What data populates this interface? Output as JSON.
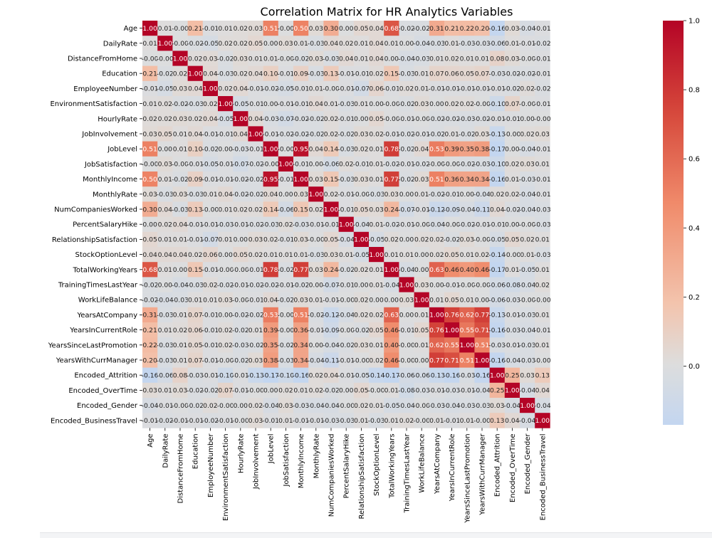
{
  "chart_data": {
    "type": "heatmap",
    "title": "Correlation Matrix for HR Analytics Variables",
    "labels": [
      "Age",
      "DailyRate",
      "DistanceFromHome",
      "Education",
      "EmployeeNumber",
      "EnvironmentSatisfaction",
      "HourlyRate",
      "JobInvolvement",
      "JobLevel",
      "JobSatisfaction",
      "MonthlyIncome",
      "MonthlyRate",
      "NumCompaniesWorked",
      "PercentSalaryHike",
      "RelationshipSatisfaction",
      "StockOptionLevel",
      "TotalWorkingYears",
      "TrainingTimesLastYear",
      "WorkLifeBalance",
      "YearsAtCompany",
      "YearsInCurrentRole",
      "YearsSinceLastPromotion",
      "YearsWithCurrManager",
      "Encoded_Attrition",
      "Encoded_OverTime",
      "Encoded_Gender",
      "Encoded_BusinessTravel"
    ],
    "matrix": [
      [
        1.0,
        0.01,
        -0.0,
        0.21,
        -0.01,
        0.01,
        0.02,
        0.03,
        0.51,
        -0.0,
        0.5,
        0.03,
        0.3,
        0.0,
        0.05,
        0.04,
        0.68,
        -0.02,
        -0.02,
        0.31,
        0.21,
        0.22,
        0.2,
        -0.16,
        0.03,
        -0.04,
        -0.01
      ],
      [
        0.01,
        1.0,
        -0.0,
        -0.02,
        -0.05,
        0.02,
        0.02,
        0.05,
        0.0,
        0.03,
        0.01,
        -0.03,
        0.04,
        0.02,
        0.01,
        0.04,
        0.01,
        0.0,
        -0.04,
        -0.03,
        0.01,
        -0.03,
        -0.03,
        -0.06,
        0.01,
        -0.01,
        -0.02
      ],
      [
        -0.0,
        -0.0,
        1.0,
        0.02,
        0.03,
        -0.02,
        0.03,
        0.01,
        0.01,
        -0.0,
        -0.02,
        0.03,
        -0.03,
        0.04,
        0.01,
        0.04,
        0.0,
        -0.04,
        -0.03,
        0.01,
        0.02,
        0.01,
        0.01,
        0.08,
        0.03,
        -0.0,
        -0.01
      ],
      [
        0.21,
        -0.02,
        0.02,
        1.0,
        0.04,
        -0.03,
        0.02,
        0.04,
        0.1,
        -0.01,
        0.09,
        -0.03,
        0.13,
        -0.01,
        -0.01,
        0.02,
        0.15,
        -0.03,
        0.01,
        0.07,
        0.06,
        0.05,
        0.07,
        -0.03,
        -0.02,
        -0.02,
        -0.01
      ],
      [
        -0.01,
        -0.05,
        0.03,
        0.04,
        1.0,
        0.02,
        0.04,
        -0.01,
        -0.02,
        -0.05,
        -0.01,
        0.01,
        -0.0,
        -0.01,
        -0.07,
        0.06,
        -0.01,
        0.02,
        0.01,
        -0.01,
        -0.01,
        -0.01,
        -0.01,
        -0.01,
        -0.02,
        0.02,
        -0.02
      ],
      [
        0.01,
        0.02,
        -0.02,
        -0.03,
        0.02,
        1.0,
        -0.05,
        -0.01,
        0.0,
        -0.01,
        -0.01,
        0.04,
        0.01,
        -0.03,
        0.01,
        0.0,
        -0.0,
        -0.02,
        0.03,
        0.0,
        0.02,
        0.02,
        -0.0,
        -0.1,
        0.07,
        -0.0,
        -0.01
      ],
      [
        0.02,
        0.02,
        0.03,
        0.02,
        0.04,
        -0.05,
        1.0,
        0.04,
        -0.03,
        -0.07,
        -0.02,
        -0.02,
        0.02,
        -0.01,
        0.0,
        0.05,
        -0.0,
        -0.01,
        -0.0,
        -0.02,
        -0.02,
        -0.03,
        -0.02,
        -0.01,
        -0.01,
        0.0,
        -0.0
      ],
      [
        0.03,
        0.05,
        0.01,
        0.04,
        -0.01,
        -0.01,
        0.04,
        1.0,
        -0.01,
        -0.02,
        -0.02,
        -0.02,
        0.02,
        -0.02,
        0.03,
        0.02,
        -0.01,
        -0.02,
        -0.01,
        -0.02,
        0.01,
        -0.02,
        0.03,
        -0.13,
        -0.0,
        0.02,
        0.03
      ],
      [
        0.51,
        0.0,
        0.01,
        0.1,
        -0.02,
        0.0,
        -0.03,
        -0.01,
        1.0,
        -0.0,
        0.95,
        0.04,
        0.14,
        -0.03,
        0.02,
        0.01,
        0.78,
        -0.02,
        0.04,
        0.53,
        0.39,
        0.35,
        0.38,
        -0.17,
        0.0,
        -0.04,
        -0.01
      ],
      [
        -0.0,
        0.03,
        -0.0,
        -0.01,
        -0.05,
        -0.01,
        -0.07,
        -0.02,
        -0.0,
        1.0,
        -0.01,
        0.0,
        -0.06,
        0.02,
        -0.01,
        0.01,
        -0.02,
        -0.01,
        -0.02,
        -0.0,
        -0.0,
        -0.02,
        -0.03,
        -0.1,
        0.02,
        0.03,
        0.01
      ],
      [
        0.5,
        0.01,
        -0.02,
        0.09,
        -0.01,
        -0.01,
        -0.02,
        -0.02,
        0.95,
        -0.01,
        1.0,
        0.03,
        0.15,
        -0.03,
        0.03,
        0.01,
        0.77,
        -0.02,
        0.03,
        0.51,
        0.36,
        0.34,
        0.34,
        -0.16,
        0.01,
        -0.03,
        -0.01
      ],
      [
        0.03,
        -0.03,
        0.03,
        -0.03,
        0.01,
        0.04,
        -0.02,
        -0.02,
        0.04,
        0.0,
        0.03,
        1.0,
        0.02,
        -0.01,
        -0.0,
        -0.03,
        0.03,
        0.0,
        0.01,
        -0.02,
        -0.01,
        0.0,
        -0.04,
        0.02,
        0.02,
        -0.04,
        -0.01
      ],
      [
        0.3,
        0.04,
        -0.03,
        0.13,
        -0.0,
        0.01,
        0.02,
        0.02,
        0.14,
        -0.06,
        0.15,
        0.02,
        1.0,
        -0.01,
        0.05,
        0.03,
        0.24,
        -0.07,
        -0.01,
        -0.12,
        -0.09,
        -0.04,
        -0.11,
        0.04,
        -0.02,
        -0.04,
        -0.03
      ],
      [
        0.0,
        0.02,
        0.04,
        -0.01,
        -0.01,
        -0.03,
        -0.01,
        -0.02,
        -0.03,
        0.02,
        -0.03,
        -0.01,
        -0.01,
        1.0,
        -0.04,
        0.01,
        -0.02,
        -0.01,
        -0.0,
        -0.04,
        -0.0,
        -0.02,
        -0.01,
        -0.01,
        0.0,
        -0.0,
        -0.03
      ],
      [
        0.05,
        0.01,
        0.01,
        -0.01,
        -0.07,
        0.01,
        0.0,
        0.03,
        0.02,
        -0.01,
        0.03,
        -0.0,
        0.05,
        -0.04,
        1.0,
        -0.05,
        0.02,
        0.0,
        0.02,
        0.02,
        -0.02,
        0.03,
        -0.0,
        -0.05,
        0.05,
        0.02,
        0.01
      ],
      [
        0.04,
        0.04,
        0.04,
        0.02,
        0.06,
        0.0,
        0.05,
        0.02,
        0.01,
        0.01,
        0.01,
        -0.03,
        0.03,
        0.01,
        -0.05,
        1.0,
        0.01,
        0.01,
        0.0,
        0.02,
        0.05,
        0.01,
        0.02,
        -0.14,
        -0.0,
        0.01,
        -0.03
      ],
      [
        0.68,
        0.01,
        0.0,
        0.15,
        -0.01,
        -0.0,
        -0.0,
        -0.01,
        0.78,
        -0.02,
        0.77,
        0.03,
        0.24,
        -0.02,
        0.02,
        0.01,
        1.0,
        -0.04,
        0.0,
        0.63,
        0.46,
        0.4,
        0.46,
        -0.17,
        0.01,
        -0.05,
        0.01
      ],
      [
        -0.02,
        0.0,
        -0.04,
        -0.03,
        0.02,
        -0.02,
        -0.01,
        -0.02,
        -0.02,
        -0.01,
        -0.02,
        0.0,
        -0.07,
        -0.01,
        0.0,
        0.01,
        -0.04,
        1.0,
        0.03,
        0.0,
        -0.01,
        -0.0,
        -0.0,
        -0.06,
        -0.08,
        -0.04,
        0.02
      ],
      [
        -0.02,
        -0.04,
        -0.03,
        0.01,
        0.01,
        0.03,
        -0.0,
        -0.01,
        0.04,
        -0.02,
        0.03,
        0.01,
        -0.01,
        -0.0,
        0.02,
        0.0,
        0.0,
        0.03,
        1.0,
        0.01,
        0.05,
        0.01,
        0.0,
        -0.06,
        -0.03,
        -0.0,
        -0.0
      ],
      [
        0.31,
        -0.03,
        0.01,
        0.07,
        -0.01,
        0.0,
        -0.02,
        -0.02,
        0.53,
        -0.0,
        0.51,
        -0.02,
        -0.12,
        -0.04,
        0.02,
        0.02,
        0.63,
        0.0,
        0.01,
        1.0,
        0.76,
        0.62,
        0.77,
        -0.13,
        -0.01,
        -0.03,
        0.01
      ],
      [
        0.21,
        0.01,
        0.02,
        0.06,
        -0.01,
        0.02,
        -0.02,
        0.01,
        0.39,
        -0.0,
        0.36,
        -0.01,
        -0.09,
        -0.0,
        -0.02,
        0.05,
        0.46,
        -0.01,
        0.05,
        0.76,
        1.0,
        0.55,
        0.71,
        -0.16,
        -0.03,
        -0.04,
        -0.01
      ],
      [
        0.22,
        -0.03,
        0.01,
        0.05,
        -0.01,
        0.02,
        -0.03,
        -0.02,
        0.35,
        -0.02,
        0.34,
        0.0,
        -0.04,
        -0.02,
        0.03,
        0.01,
        0.4,
        -0.0,
        0.01,
        0.62,
        0.55,
        1.0,
        0.51,
        -0.03,
        -0.01,
        -0.03,
        0.01
      ],
      [
        0.2,
        -0.03,
        0.01,
        0.07,
        -0.01,
        -0.0,
        -0.02,
        0.03,
        0.38,
        -0.03,
        0.34,
        -0.04,
        -0.11,
        -0.01,
        -0.0,
        0.02,
        0.46,
        -0.0,
        0.0,
        0.77,
        0.71,
        0.51,
        1.0,
        -0.16,
        -0.04,
        -0.03,
        -0.0
      ],
      [
        -0.16,
        -0.06,
        0.08,
        -0.03,
        -0.01,
        -0.1,
        -0.01,
        -0.13,
        -0.17,
        -0.1,
        -0.16,
        0.02,
        0.04,
        -0.01,
        -0.05,
        -0.14,
        -0.17,
        -0.06,
        -0.06,
        -0.13,
        -0.16,
        -0.03,
        -0.16,
        1.0,
        0.25,
        0.03,
        0.13
      ],
      [
        0.03,
        0.01,
        0.03,
        -0.02,
        -0.02,
        0.07,
        -0.01,
        -0.0,
        0.0,
        0.02,
        0.01,
        0.02,
        -0.02,
        0.0,
        0.05,
        -0.0,
        0.01,
        -0.08,
        -0.03,
        -0.01,
        -0.03,
        -0.01,
        -0.04,
        0.25,
        1.0,
        -0.04,
        0.04
      ],
      [
        -0.04,
        -0.01,
        -0.0,
        -0.02,
        0.02,
        -0.0,
        0.0,
        0.02,
        -0.04,
        0.03,
        -0.03,
        -0.04,
        -0.04,
        -0.0,
        0.02,
        0.01,
        -0.05,
        -0.04,
        -0.0,
        -0.03,
        -0.04,
        -0.03,
        -0.03,
        0.03,
        -0.04,
        1.0,
        -0.04
      ],
      [
        -0.01,
        -0.02,
        -0.01,
        -0.01,
        -0.02,
        -0.01,
        -0.0,
        0.03,
        -0.01,
        0.01,
        -0.01,
        -0.01,
        -0.03,
        -0.03,
        0.01,
        -0.03,
        0.01,
        0.02,
        -0.0,
        0.01,
        -0.01,
        0.01,
        -0.0,
        0.13,
        0.04,
        -0.04,
        1.0
      ]
    ],
    "value_format": "2 decimals",
    "colorbar": {
      "ticks": [
        0.0,
        0.2,
        0.4,
        0.6,
        0.8,
        1.0
      ],
      "range": [
        -0.17,
        1.0
      ]
    },
    "colormap": {
      "low": "#c3d6f0",
      "mid": "#dddddd",
      "high": "#b40426"
    }
  }
}
